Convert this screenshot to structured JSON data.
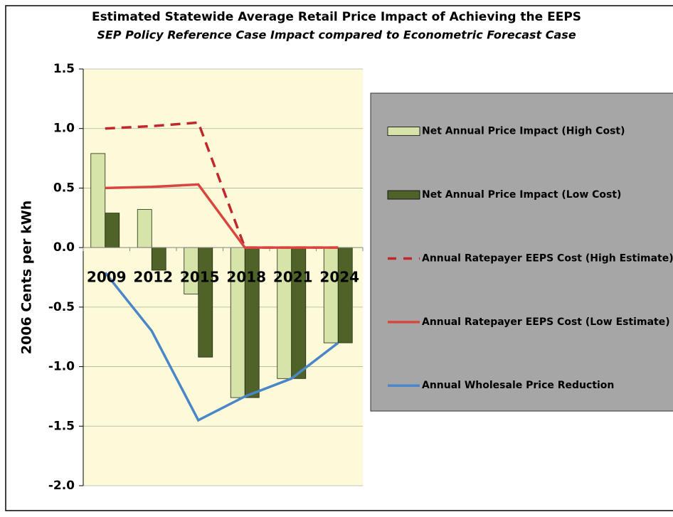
{
  "chart_data": {
    "type": "bar",
    "title": "Estimated Statewide Average Retail Price Impact of Achieving the EEPS",
    "subtitle": "SEP Policy Reference Case Impact compared to Econometric Forecast Case",
    "y_label": "2006 Cents per kWh",
    "categories": [
      "2009",
      "2012",
      "2015",
      "2018",
      "2021",
      "2024"
    ],
    "series": [
      {
        "name": "Net Annual Price Impact (High Cost)",
        "type": "bar",
        "color": "#d7e4a9",
        "values": [
          0.79,
          0.32,
          -0.39,
          -1.26,
          -1.1,
          -0.8
        ]
      },
      {
        "name": "Net Annual Price Impact (Low Cost)",
        "type": "bar",
        "color": "#4f6228",
        "values": [
          0.29,
          -0.19,
          -0.92,
          -1.26,
          -1.1,
          -0.8
        ]
      },
      {
        "name": "Annual Ratepayer EEPS Cost (High Estimate)",
        "type": "line",
        "dashed": true,
        "color": "#c0282d",
        "values": [
          1.0,
          1.02,
          1.05,
          0,
          0,
          0
        ]
      },
      {
        "name": "Annual Ratepayer EEPS Cost (Low Estimate)",
        "type": "line",
        "dashed": false,
        "color": "#d9463f",
        "values": [
          0.5,
          0.51,
          0.53,
          0,
          0,
          0
        ]
      },
      {
        "name": "Annual Wholesale Price Reduction",
        "type": "line",
        "dashed": false,
        "color": "#4a86c8",
        "values": [
          -0.21,
          -0.7,
          -1.45,
          -1.25,
          -1.1,
          -0.8
        ]
      }
    ],
    "ylim": [
      -2.0,
      1.5
    ],
    "yticks": [
      {
        "value": 1.5,
        "label": "1.5"
      },
      {
        "value": 1.0,
        "label": "1.0"
      },
      {
        "value": 0.5,
        "label": "0.5"
      },
      {
        "value": 0.0,
        "label": "0.0"
      },
      {
        "value": -0.5,
        "label": "-0.5"
      },
      {
        "value": -1.0,
        "label": "-1.0"
      },
      {
        "value": -1.5,
        "label": "-1.5"
      },
      {
        "value": -2.0,
        "label": "-2.0"
      }
    ],
    "grid": true,
    "legend_position": "right"
  }
}
